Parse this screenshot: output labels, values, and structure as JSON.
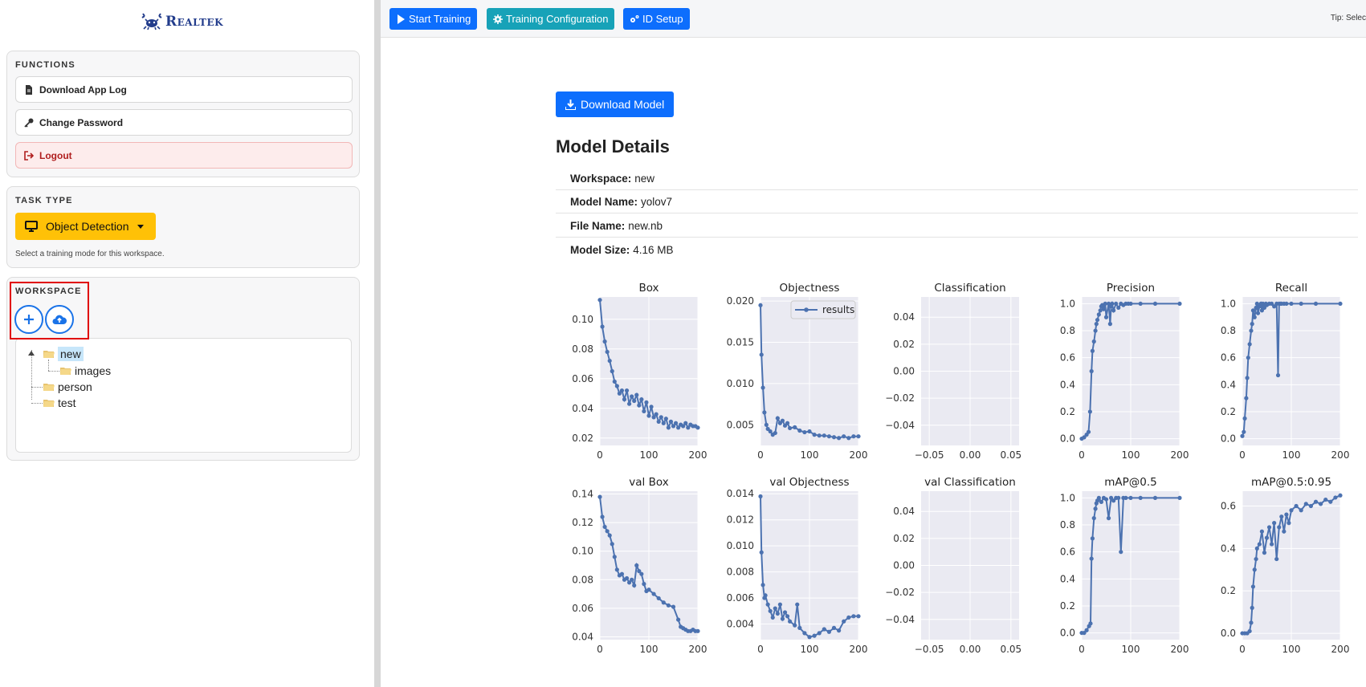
{
  "brand": {
    "name": "Realtek"
  },
  "sidebar": {
    "functions": {
      "title": "FUNCTIONS",
      "download_app_log": "Download App Log",
      "change_password": "Change Password",
      "logout": "Logout"
    },
    "task_type": {
      "title": "TASK TYPE",
      "selected": "Object Detection",
      "hint": "Select a training mode for this workspace."
    },
    "workspace": {
      "title": "WORKSPACE",
      "tree": [
        {
          "label": "new",
          "selected": true,
          "children": [
            {
              "label": "images"
            }
          ]
        },
        {
          "label": "person"
        },
        {
          "label": "test"
        }
      ]
    }
  },
  "toolbar": {
    "start_training": "Start Training",
    "training_configuration": "Training Configuration",
    "id_setup": "ID Setup",
    "tip": "Tip: Select a works"
  },
  "main": {
    "download_model": "Download Model",
    "heading": "Model Details",
    "details": [
      {
        "key": "Workspace:",
        "value": "new"
      },
      {
        "key": "Model Name:",
        "value": "yolov7"
      },
      {
        "key": "File Name:",
        "value": "new.nb"
      },
      {
        "key": "Model Size:",
        "value": "4.16 MB"
      }
    ]
  },
  "colors": {
    "primary": "#0d6efd",
    "teal": "#17a2b8",
    "warning": "#ffc107",
    "danger": "#b01e1e",
    "plot_line": "#4c72b0",
    "plot_bg": "#eaeaf2"
  },
  "chart_data": [
    {
      "type": "line",
      "title": "Box",
      "xlim": [
        0,
        200
      ],
      "xticks": [
        0,
        100,
        200
      ],
      "yticks": [
        "0.02",
        "0.04",
        "0.06",
        "0.08",
        "0.10"
      ],
      "ylim": [
        0.015,
        0.115
      ],
      "x": [
        0,
        5,
        10,
        15,
        20,
        25,
        30,
        35,
        40,
        45,
        50,
        55,
        60,
        65,
        70,
        75,
        80,
        85,
        90,
        95,
        100,
        105,
        110,
        115,
        120,
        125,
        130,
        135,
        140,
        145,
        150,
        155,
        160,
        165,
        170,
        175,
        180,
        185,
        190,
        195,
        200
      ],
      "y": [
        0.113,
        0.095,
        0.085,
        0.078,
        0.072,
        0.065,
        0.058,
        0.055,
        0.05,
        0.052,
        0.046,
        0.052,
        0.043,
        0.048,
        0.045,
        0.049,
        0.042,
        0.046,
        0.038,
        0.044,
        0.035,
        0.041,
        0.034,
        0.036,
        0.031,
        0.034,
        0.03,
        0.033,
        0.027,
        0.031,
        0.028,
        0.03,
        0.027,
        0.029,
        0.028,
        0.03,
        0.027,
        0.029,
        0.028,
        0.028,
        0.027
      ]
    },
    {
      "type": "line",
      "title": "Objectness",
      "legend": "results",
      "legend_position": "top-right",
      "xlim": [
        0,
        200
      ],
      "xticks": [
        0,
        100,
        200
      ],
      "yticks": [
        "0.005",
        "0.010",
        "0.015",
        "0.020"
      ],
      "ylim": [
        0.0025,
        0.0205
      ],
      "x": [
        0,
        2,
        5,
        8,
        12,
        15,
        20,
        25,
        30,
        35,
        40,
        45,
        50,
        55,
        60,
        70,
        80,
        90,
        100,
        110,
        120,
        130,
        140,
        150,
        160,
        170,
        180,
        190,
        200
      ],
      "y": [
        0.0195,
        0.0135,
        0.0095,
        0.0065,
        0.005,
        0.0045,
        0.0042,
        0.0038,
        0.004,
        0.0058,
        0.0052,
        0.0055,
        0.0049,
        0.0052,
        0.0046,
        0.0047,
        0.0043,
        0.0041,
        0.0042,
        0.0038,
        0.0037,
        0.0037,
        0.0036,
        0.0035,
        0.0034,
        0.0036,
        0.0034,
        0.0036,
        0.0036
      ]
    },
    {
      "type": "line",
      "title": "Classification",
      "xlim": [
        -0.06,
        0.06
      ],
      "xticks": [
        "−0.05",
        "0.00",
        "0.05"
      ],
      "yticks": [
        "−0.04",
        "−0.02",
        "0.00",
        "0.02",
        "0.04"
      ],
      "ylim": [
        -0.055,
        0.055
      ],
      "x": [],
      "y": []
    },
    {
      "type": "line",
      "title": "Precision",
      "xlim": [
        0,
        200
      ],
      "xticks": [
        0,
        100,
        200
      ],
      "yticks": [
        "0.0",
        "0.2",
        "0.4",
        "0.6",
        "0.8",
        "1.0"
      ],
      "ylim": [
        -0.05,
        1.05
      ],
      "x": [
        0,
        5,
        10,
        14,
        17,
        20,
        22,
        25,
        28,
        30,
        32,
        35,
        38,
        40,
        42,
        45,
        48,
        50,
        55,
        58,
        60,
        62,
        65,
        70,
        75,
        80,
        85,
        90,
        95,
        100,
        120,
        150,
        200
      ],
      "y": [
        0.0,
        0.01,
        0.03,
        0.05,
        0.2,
        0.5,
        0.65,
        0.72,
        0.8,
        0.85,
        0.88,
        0.92,
        0.95,
        0.98,
        0.99,
        0.96,
        1.0,
        0.9,
        1.0,
        0.85,
        0.98,
        1.0,
        0.95,
        1.0,
        0.97,
        1.0,
        0.99,
        1.0,
        1.0,
        1.0,
        1.0,
        1.0,
        1.0
      ]
    },
    {
      "type": "line",
      "title": "Recall",
      "xlim": [
        0,
        200
      ],
      "xticks": [
        0,
        100,
        200
      ],
      "yticks": [
        "0.0",
        "0.2",
        "0.4",
        "0.6",
        "0.8",
        "1.0"
      ],
      "ylim": [
        -0.05,
        1.05
      ],
      "x": [
        0,
        3,
        5,
        8,
        10,
        12,
        15,
        18,
        20,
        22,
        25,
        28,
        30,
        32,
        35,
        38,
        40,
        42,
        45,
        48,
        50,
        55,
        60,
        65,
        70,
        73,
        75,
        78,
        80,
        85,
        90,
        100,
        120,
        150,
        200
      ],
      "y": [
        0.02,
        0.05,
        0.15,
        0.3,
        0.45,
        0.6,
        0.7,
        0.8,
        0.85,
        0.95,
        0.9,
        0.97,
        1.0,
        0.93,
        0.98,
        1.0,
        0.95,
        1.0,
        0.97,
        1.0,
        0.99,
        1.0,
        1.0,
        0.98,
        1.0,
        0.47,
        1.0,
        1.0,
        1.0,
        1.0,
        1.0,
        1.0,
        1.0,
        1.0,
        1.0
      ]
    },
    {
      "type": "line",
      "title": "val Box",
      "xlim": [
        0,
        200
      ],
      "xticks": [
        0,
        100,
        200
      ],
      "yticks": [
        "0.04",
        "0.06",
        "0.08",
        "0.10",
        "0.12",
        "0.14"
      ],
      "ylim": [
        0.038,
        0.142
      ],
      "x": [
        0,
        5,
        10,
        15,
        20,
        25,
        30,
        35,
        40,
        45,
        50,
        55,
        60,
        65,
        70,
        75,
        80,
        85,
        90,
        95,
        100,
        110,
        120,
        130,
        140,
        150,
        160,
        165,
        170,
        175,
        180,
        185,
        190,
        195,
        200
      ],
      "y": [
        0.138,
        0.124,
        0.117,
        0.114,
        0.111,
        0.105,
        0.096,
        0.087,
        0.083,
        0.084,
        0.08,
        0.081,
        0.078,
        0.08,
        0.076,
        0.09,
        0.086,
        0.084,
        0.077,
        0.072,
        0.073,
        0.07,
        0.067,
        0.064,
        0.062,
        0.061,
        0.052,
        0.047,
        0.046,
        0.045,
        0.044,
        0.044,
        0.045,
        0.044,
        0.044
      ]
    },
    {
      "type": "line",
      "title": "val Objectness",
      "xlim": [
        0,
        200
      ],
      "xticks": [
        0,
        100,
        200
      ],
      "yticks": [
        "0.004",
        "0.006",
        "0.008",
        "0.010",
        "0.012",
        "0.014"
      ],
      "ylim": [
        0.0028,
        0.0142
      ],
      "x": [
        0,
        2,
        5,
        8,
        10,
        15,
        20,
        25,
        30,
        35,
        40,
        45,
        50,
        55,
        60,
        70,
        75,
        80,
        90,
        100,
        110,
        120,
        130,
        140,
        150,
        160,
        170,
        180,
        190,
        200
      ],
      "y": [
        0.0138,
        0.0095,
        0.007,
        0.006,
        0.0062,
        0.0055,
        0.005,
        0.0045,
        0.0052,
        0.0048,
        0.0055,
        0.0044,
        0.0049,
        0.0046,
        0.0042,
        0.0039,
        0.0055,
        0.0037,
        0.0033,
        0.003,
        0.0031,
        0.0033,
        0.0036,
        0.0034,
        0.0037,
        0.0035,
        0.0042,
        0.0045,
        0.0046,
        0.0046
      ]
    },
    {
      "type": "line",
      "title": "val Classification",
      "xlim": [
        -0.06,
        0.06
      ],
      "xticks": [
        "−0.05",
        "0.00",
        "0.05"
      ],
      "yticks": [
        "−0.04",
        "−0.02",
        "0.00",
        "0.02",
        "0.04"
      ],
      "ylim": [
        -0.055,
        0.055
      ],
      "x": [],
      "y": []
    },
    {
      "type": "line",
      "title": "mAP@0.5",
      "xlim": [
        0,
        200
      ],
      "xticks": [
        0,
        100,
        200
      ],
      "yticks": [
        "0.0",
        "0.2",
        "0.4",
        "0.6",
        "0.8",
        "1.0"
      ],
      "ylim": [
        -0.05,
        1.05
      ],
      "x": [
        0,
        5,
        10,
        15,
        18,
        20,
        22,
        25,
        28,
        30,
        32,
        35,
        40,
        45,
        50,
        55,
        60,
        65,
        70,
        75,
        80,
        85,
        90,
        100,
        120,
        150,
        200
      ],
      "y": [
        0.0,
        0.0,
        0.02,
        0.05,
        0.07,
        0.55,
        0.7,
        0.85,
        0.92,
        0.96,
        0.98,
        1.0,
        0.97,
        1.0,
        0.99,
        0.85,
        1.0,
        0.98,
        1.0,
        1.0,
        0.6,
        1.0,
        1.0,
        1.0,
        1.0,
        1.0,
        1.0
      ]
    },
    {
      "type": "line",
      "title": "mAP@0.5:0.95",
      "xlim": [
        0,
        200
      ],
      "xticks": [
        0,
        100,
        200
      ],
      "yticks": [
        "0.0",
        "0.2",
        "0.4",
        "0.6"
      ],
      "ylim": [
        -0.03,
        0.67
      ],
      "x": [
        0,
        5,
        10,
        15,
        18,
        20,
        22,
        25,
        28,
        30,
        35,
        40,
        45,
        50,
        55,
        60,
        65,
        70,
        75,
        80,
        85,
        90,
        95,
        100,
        110,
        120,
        130,
        140,
        150,
        160,
        170,
        180,
        190,
        200
      ],
      "y": [
        0.0,
        0.0,
        0.0,
        0.01,
        0.05,
        0.12,
        0.22,
        0.3,
        0.35,
        0.4,
        0.42,
        0.48,
        0.38,
        0.45,
        0.5,
        0.42,
        0.52,
        0.35,
        0.5,
        0.55,
        0.48,
        0.56,
        0.52,
        0.58,
        0.6,
        0.58,
        0.61,
        0.6,
        0.62,
        0.61,
        0.63,
        0.62,
        0.64,
        0.65
      ]
    }
  ]
}
